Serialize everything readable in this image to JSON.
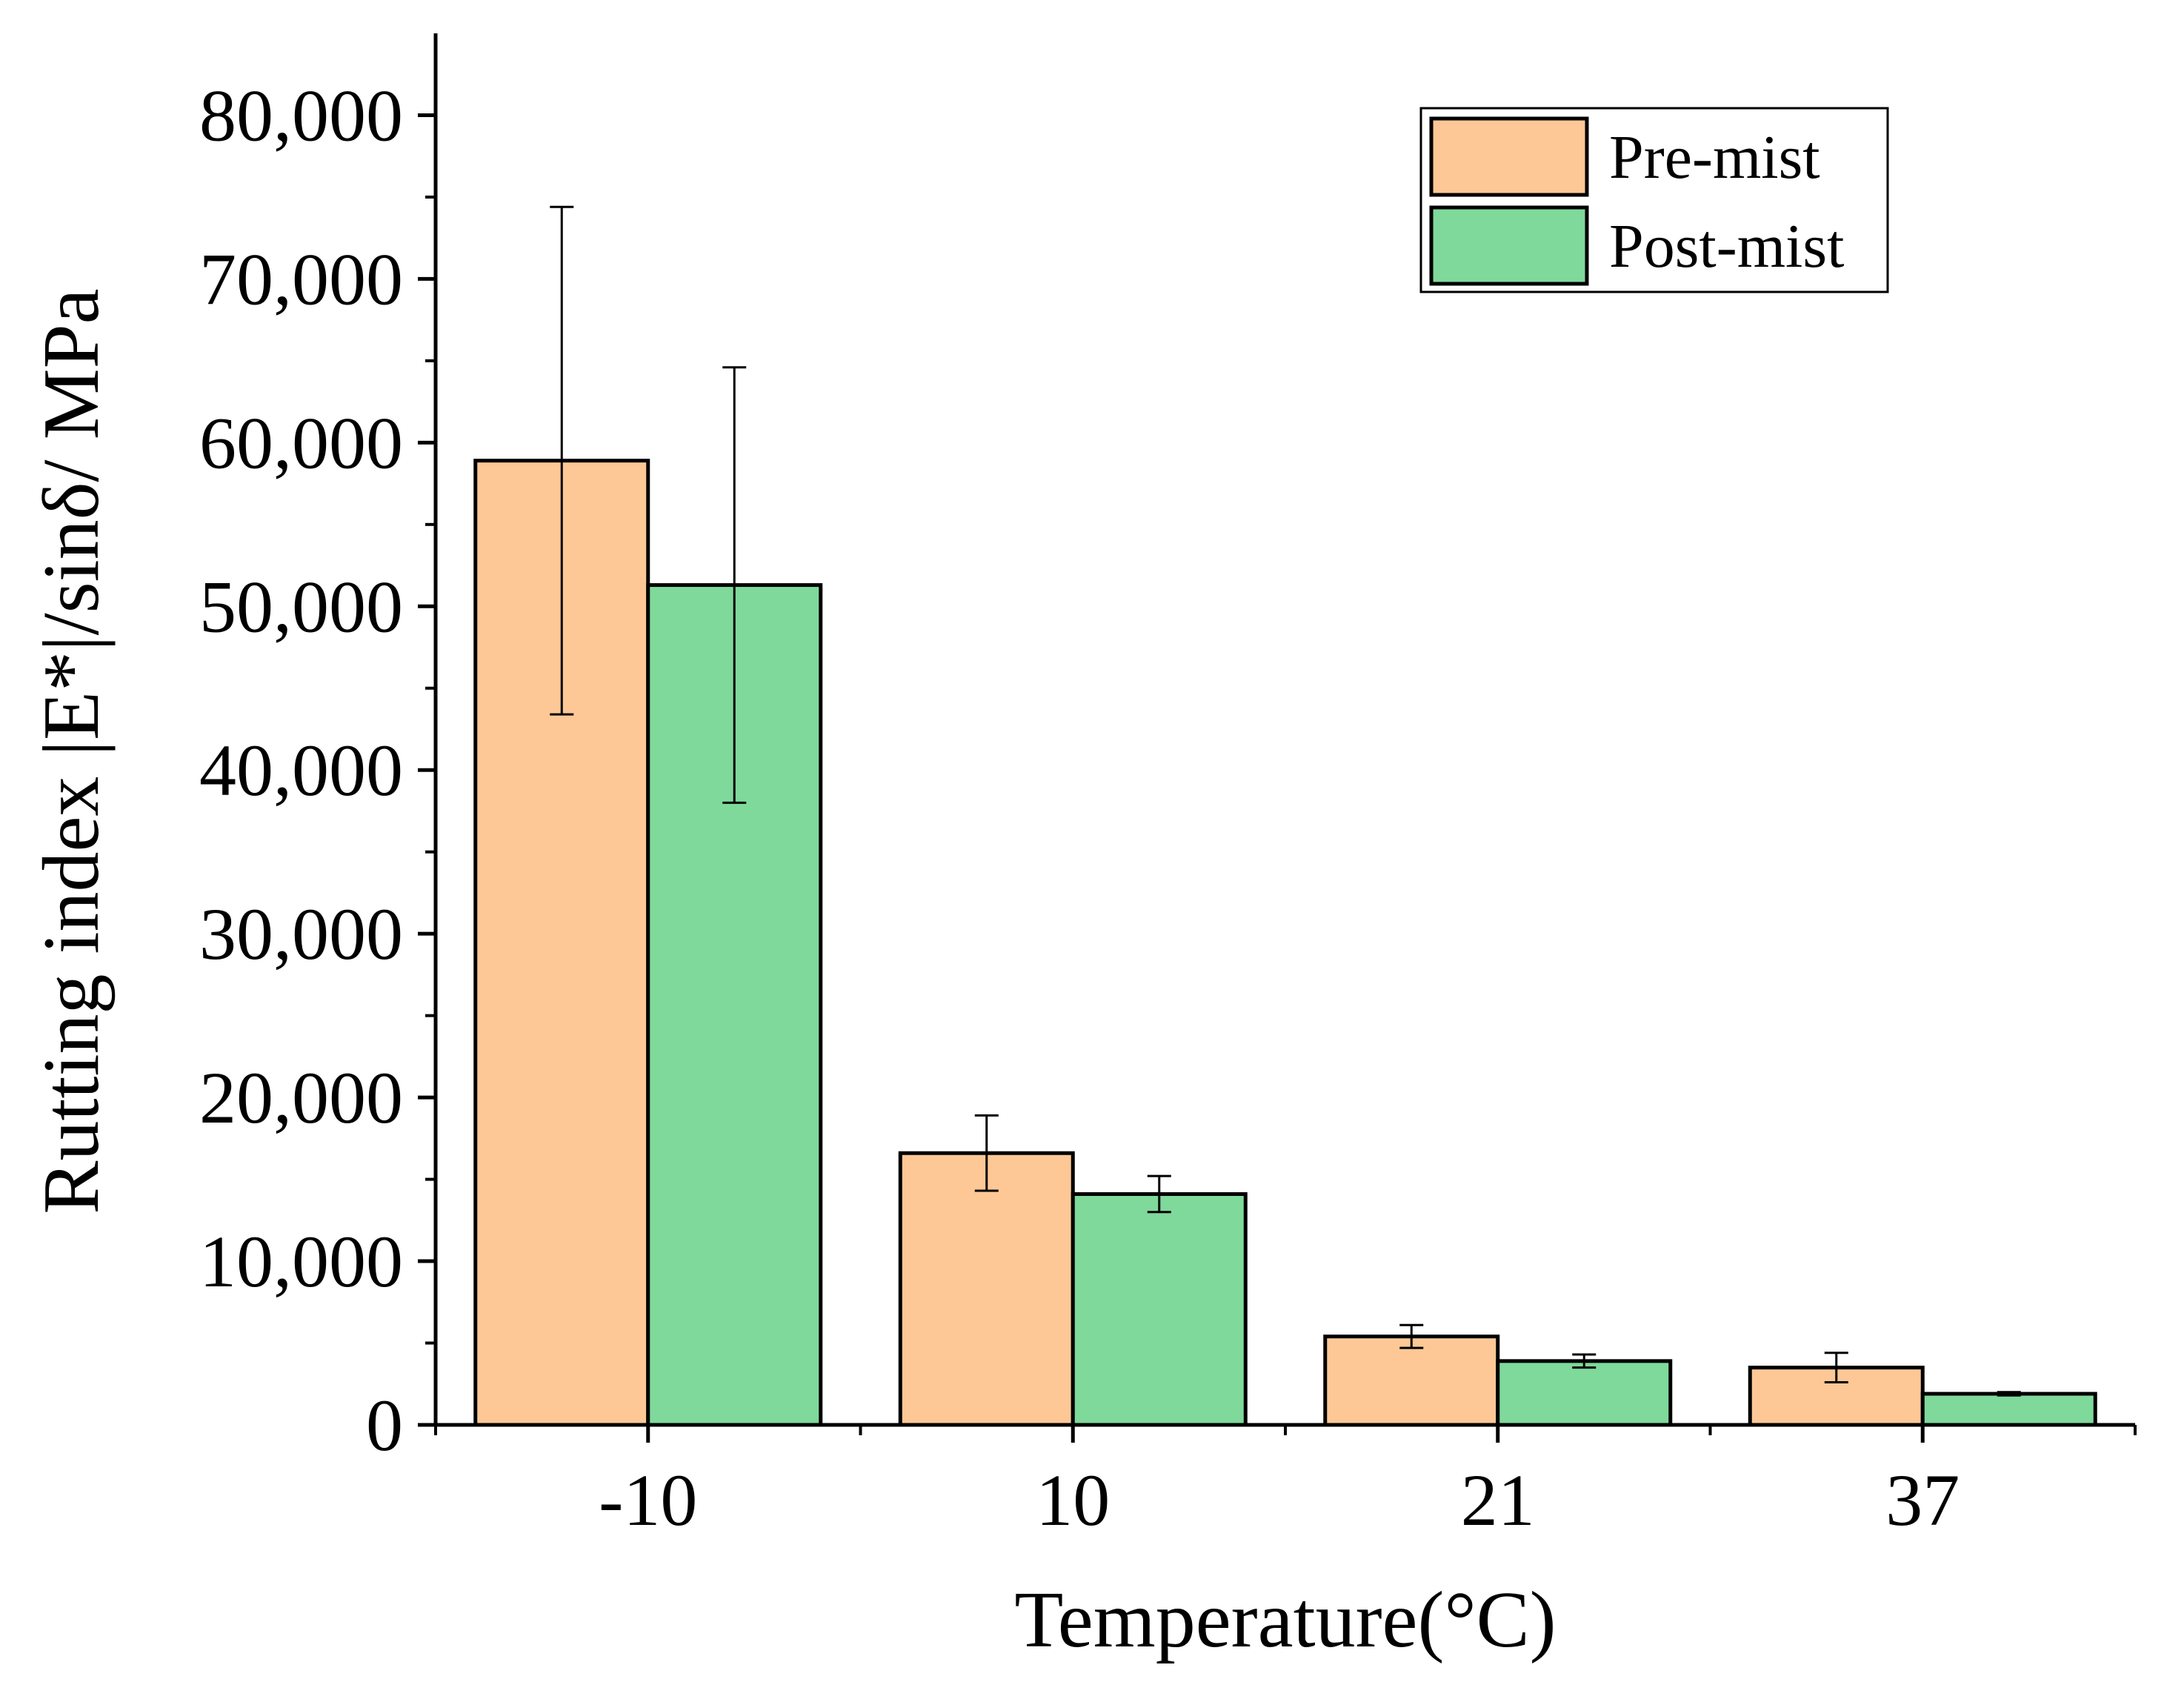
{
  "chart_data": {
    "type": "bar",
    "title": "",
    "xlabel": "Temperature(°C)",
    "ylabel": "Rutting index |E*|/sinδ/ MPa",
    "categories": [
      "-10",
      "10",
      "21",
      "37"
    ],
    "ylim": [
      0,
      85000
    ],
    "yticks": [
      0,
      10000,
      20000,
      30000,
      40000,
      50000,
      60000,
      70000,
      80000
    ],
    "ytick_labels": [
      "0",
      "10,000",
      "20,000",
      "30,000",
      "40,000",
      "50,000",
      "60,000",
      "70,000",
      "80,000"
    ],
    "legend": {
      "position": "top-right"
    },
    "series": [
      {
        "name": "Pre-mist",
        "color": "#FDC896",
        "values": [
          58900,
          16600,
          5400,
          3500
        ],
        "error": [
          15500,
          2300,
          700,
          900
        ]
      },
      {
        "name": "Post-mist",
        "color": "#7FD99B",
        "values": [
          51300,
          14100,
          3900,
          1900
        ],
        "error": [
          13300,
          1100,
          400,
          100
        ]
      }
    ]
  }
}
